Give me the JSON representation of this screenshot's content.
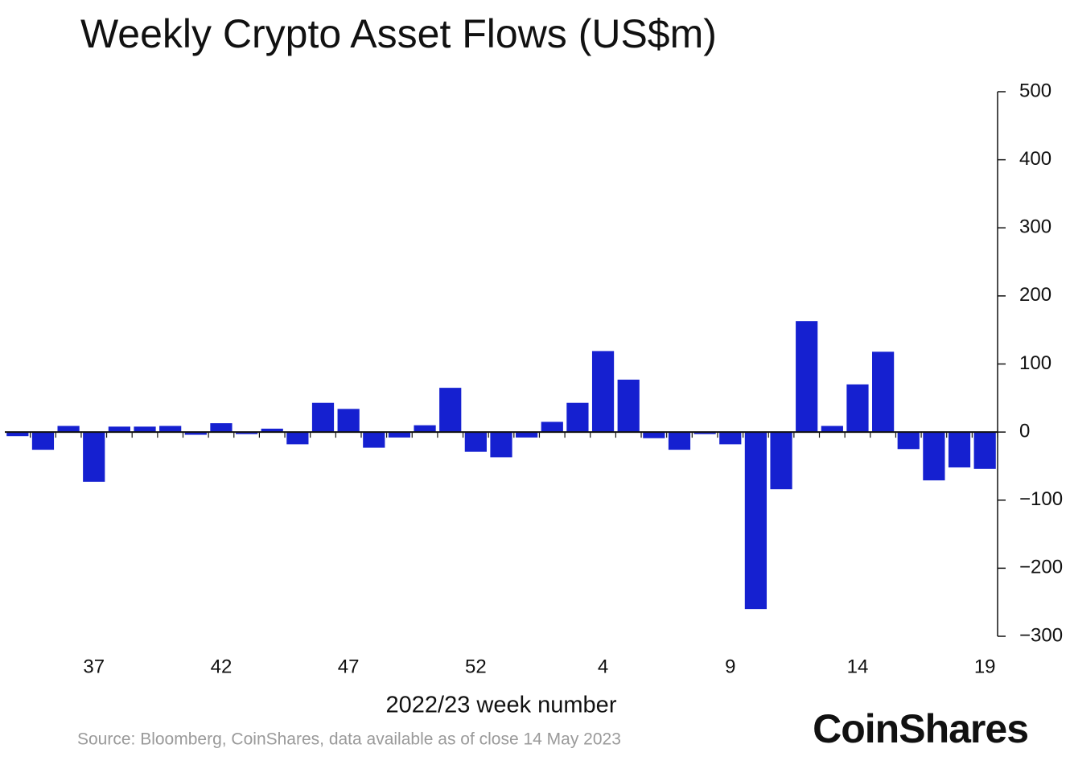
{
  "chart_data": {
    "type": "bar",
    "title": "Weekly Crypto Asset Flows (US$m)",
    "x_label": "2022/23 week number",
    "source": "Source: Bloomberg, CoinShares, data available as of close 14 May 2023",
    "brand": "CoinShares",
    "categories": [
      null,
      null,
      null,
      "37",
      null,
      null,
      null,
      null,
      "42",
      null,
      null,
      null,
      null,
      "47",
      null,
      null,
      null,
      null,
      "52",
      null,
      null,
      null,
      null,
      "4",
      null,
      null,
      null,
      null,
      "9",
      null,
      null,
      null,
      null,
      "14",
      null,
      null,
      null,
      null,
      "19"
    ],
    "values": [
      -6,
      -26,
      9,
      -73,
      8,
      8,
      9,
      -4,
      13,
      -3,
      5,
      -18,
      43,
      34,
      -23,
      -8,
      10,
      65,
      -29,
      -37,
      -8,
      15,
      43,
      119,
      77,
      -9,
      -26,
      -3,
      -18,
      -260,
      -84,
      163,
      9,
      70,
      118,
      -25,
      -71,
      -52,
      -54
    ],
    "color": "#1520d0",
    "ylim": [
      -300,
      500
    ],
    "yticks": [
      {
        "value": -300,
        "label": "−300"
      },
      {
        "value": -200,
        "label": "−200"
      },
      {
        "value": -100,
        "label": "−100"
      },
      0,
      100,
      200,
      300,
      400,
      500
    ],
    "y_axis_side": "right",
    "grid": false
  }
}
